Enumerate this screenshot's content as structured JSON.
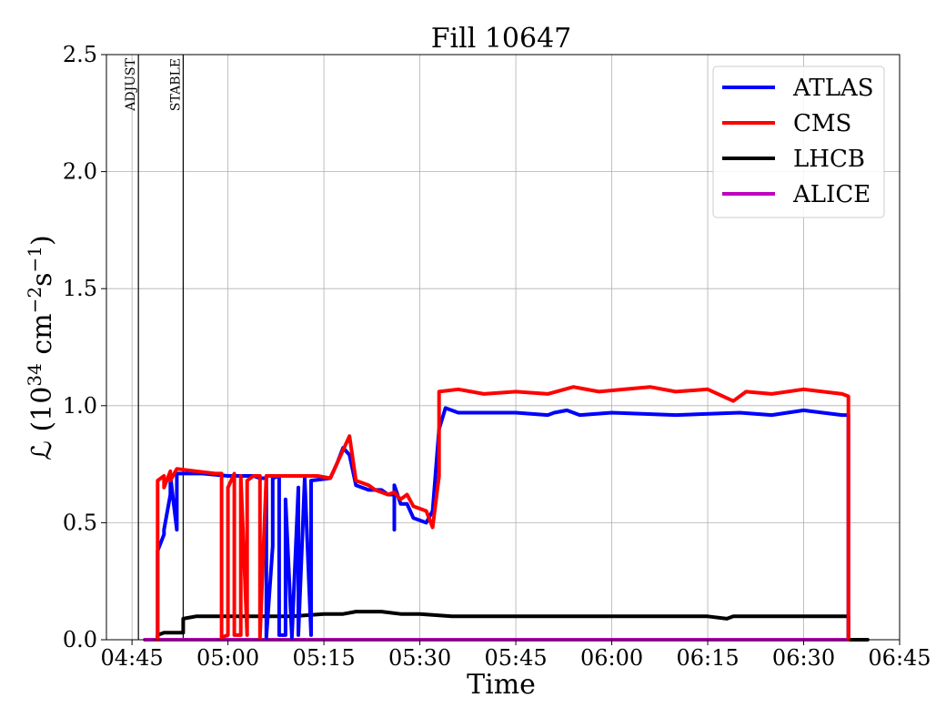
{
  "chart_data": {
    "type": "line",
    "title": "Fill 10647",
    "xlabel": "Time",
    "ylabel_prefix": "ℒ (10",
    "ylabel_exp1": "34",
    "ylabel_mid": " cm",
    "ylabel_exp2": "−2",
    "ylabel_mid2": "s",
    "ylabel_exp3": "−1",
    "ylabel_suffix": ")",
    "xlim": [
      "04:41",
      "06:45"
    ],
    "ylim": [
      0,
      2.5
    ],
    "grid": true,
    "legend_position": "top-right",
    "x_ticks": [
      "04:45",
      "05:00",
      "05:15",
      "05:30",
      "05:45",
      "06:00",
      "06:15",
      "06:30",
      "06:45"
    ],
    "y_ticks": [
      "0.0",
      "0.5",
      "1.0",
      "1.5",
      "2.0",
      "2.5"
    ],
    "y_tick_values": [
      0,
      0.5,
      1.0,
      1.5,
      2.0,
      2.5
    ],
    "vertical_markers": [
      {
        "label": "ADJUST",
        "x": "04:46"
      },
      {
        "label": "STABLE",
        "x": "04:53"
      }
    ],
    "series": [
      {
        "name": "ATLAS",
        "color": "#0000ff",
        "points": [
          [
            "04:49",
            0.0
          ],
          [
            "04:49",
            0.38
          ],
          [
            "04:50",
            0.45
          ],
          [
            "04:50",
            0.47
          ],
          [
            "04:51",
            0.62
          ],
          [
            "04:51",
            0.7
          ],
          [
            "04:52",
            0.47
          ],
          [
            "04:52",
            0.71
          ],
          [
            "04:53",
            0.71
          ],
          [
            "04:56",
            0.71
          ],
          [
            "05:00",
            0.7
          ],
          [
            "05:04",
            0.7
          ],
          [
            "05:05",
            0.69
          ],
          [
            "05:06",
            0.69
          ],
          [
            "05:06",
            0.01
          ],
          [
            "05:07",
            0.4
          ],
          [
            "05:07",
            0.69
          ],
          [
            "05:08",
            0.7
          ],
          [
            "05:08",
            0.02
          ],
          [
            "05:09",
            0.02
          ],
          [
            "05:09",
            0.6
          ],
          [
            "05:10",
            0.01
          ],
          [
            "05:11",
            0.65
          ],
          [
            "05:11",
            0.02
          ],
          [
            "05:12",
            0.69
          ],
          [
            "05:13",
            0.02
          ],
          [
            "05:13",
            0.68
          ],
          [
            "05:16",
            0.69
          ],
          [
            "05:17",
            0.75
          ],
          [
            "05:18",
            0.82
          ],
          [
            "05:19",
            0.79
          ],
          [
            "05:20",
            0.66
          ],
          [
            "05:22",
            0.64
          ],
          [
            "05:24",
            0.64
          ],
          [
            "05:25",
            0.62
          ],
          [
            "05:26",
            0.62
          ],
          [
            "05:26",
            0.47
          ],
          [
            "05:26",
            0.66
          ],
          [
            "05:27",
            0.58
          ],
          [
            "05:28",
            0.58
          ],
          [
            "05:29",
            0.52
          ],
          [
            "05:31",
            0.5
          ],
          [
            "05:32",
            0.55
          ],
          [
            "05:33",
            0.9
          ],
          [
            "05:34",
            0.99
          ],
          [
            "05:36",
            0.97
          ],
          [
            "05:45",
            0.97
          ],
          [
            "05:50",
            0.96
          ],
          [
            "05:51",
            0.97
          ],
          [
            "05:53",
            0.98
          ],
          [
            "05:55",
            0.96
          ],
          [
            "06:00",
            0.97
          ],
          [
            "06:10",
            0.96
          ],
          [
            "06:20",
            0.97
          ],
          [
            "06:25",
            0.96
          ],
          [
            "06:30",
            0.98
          ],
          [
            "06:36",
            0.96
          ],
          [
            "06:37",
            0.96
          ],
          [
            "06:37",
            0.0
          ]
        ]
      },
      {
        "name": "CMS",
        "color": "#ff0000",
        "points": [
          [
            "04:49",
            0.0
          ],
          [
            "04:49",
            0.68
          ],
          [
            "04:50",
            0.7
          ],
          [
            "04:50",
            0.65
          ],
          [
            "04:51",
            0.72
          ],
          [
            "04:51",
            0.68
          ],
          [
            "04:52",
            0.73
          ],
          [
            "04:55",
            0.72
          ],
          [
            "04:58",
            0.71
          ],
          [
            "04:59",
            0.71
          ],
          [
            "04:59",
            0.01
          ],
          [
            "05:00",
            0.02
          ],
          [
            "05:00",
            0.65
          ],
          [
            "05:01",
            0.71
          ],
          [
            "05:01",
            0.02
          ],
          [
            "05:02",
            0.02
          ],
          [
            "05:02",
            0.7
          ],
          [
            "05:03",
            0.02
          ],
          [
            "05:03",
            0.68
          ],
          [
            "05:04",
            0.7
          ],
          [
            "05:05",
            0.7
          ],
          [
            "05:05",
            0.01
          ],
          [
            "05:06",
            0.7
          ],
          [
            "05:08",
            0.7
          ],
          [
            "05:10",
            0.7
          ],
          [
            "05:14",
            0.7
          ],
          [
            "05:16",
            0.69
          ],
          [
            "05:19",
            0.87
          ],
          [
            "05:20",
            0.68
          ],
          [
            "05:22",
            0.66
          ],
          [
            "05:23",
            0.64
          ],
          [
            "05:25",
            0.62
          ],
          [
            "05:26",
            0.63
          ],
          [
            "05:27",
            0.6
          ],
          [
            "05:28",
            0.62
          ],
          [
            "05:29",
            0.57
          ],
          [
            "05:31",
            0.55
          ],
          [
            "05:32",
            0.48
          ],
          [
            "05:33",
            0.7
          ],
          [
            "05:33",
            1.06
          ],
          [
            "05:36",
            1.07
          ],
          [
            "05:40",
            1.05
          ],
          [
            "05:45",
            1.06
          ],
          [
            "05:50",
            1.05
          ],
          [
            "05:54",
            1.08
          ],
          [
            "05:58",
            1.06
          ],
          [
            "06:02",
            1.07
          ],
          [
            "06:06",
            1.08
          ],
          [
            "06:10",
            1.06
          ],
          [
            "06:15",
            1.07
          ],
          [
            "06:19",
            1.02
          ],
          [
            "06:21",
            1.06
          ],
          [
            "06:25",
            1.05
          ],
          [
            "06:30",
            1.07
          ],
          [
            "06:36",
            1.05
          ],
          [
            "06:37",
            1.04
          ],
          [
            "06:37",
            0.0
          ]
        ]
      },
      {
        "name": "LHCB",
        "color": "#000000",
        "points": [
          [
            "04:49",
            0.0
          ],
          [
            "04:49",
            0.02
          ],
          [
            "04:50",
            0.03
          ],
          [
            "04:53",
            0.03
          ],
          [
            "04:53",
            0.09
          ],
          [
            "04:55",
            0.1
          ],
          [
            "05:00",
            0.1
          ],
          [
            "05:05",
            0.1
          ],
          [
            "05:10",
            0.1
          ],
          [
            "05:15",
            0.11
          ],
          [
            "05:18",
            0.11
          ],
          [
            "05:20",
            0.12
          ],
          [
            "05:24",
            0.12
          ],
          [
            "05:27",
            0.11
          ],
          [
            "05:30",
            0.11
          ],
          [
            "05:35",
            0.1
          ],
          [
            "05:45",
            0.1
          ],
          [
            "05:55",
            0.1
          ],
          [
            "06:05",
            0.1
          ],
          [
            "06:15",
            0.1
          ],
          [
            "06:18",
            0.09
          ],
          [
            "06:19",
            0.1
          ],
          [
            "06:25",
            0.1
          ],
          [
            "06:36",
            0.1
          ],
          [
            "06:37",
            0.1
          ],
          [
            "06:37",
            0.0
          ],
          [
            "06:40",
            0.0
          ]
        ]
      },
      {
        "name": "ALICE",
        "color": "#bf00bf",
        "points": [
          [
            "04:47",
            0.0
          ],
          [
            "05:30",
            0.0
          ],
          [
            "06:37",
            0.0
          ]
        ]
      }
    ]
  }
}
